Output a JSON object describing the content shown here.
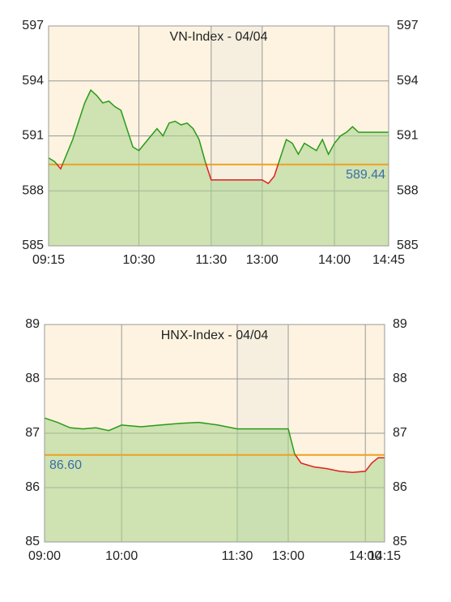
{
  "chart_data": [
    {
      "type": "line",
      "title": "VN-Index - 04/04",
      "x": [
        "09:15",
        "09:20",
        "09:25",
        "09:30",
        "09:35",
        "09:40",
        "09:45",
        "09:50",
        "09:55",
        "10:00",
        "10:05",
        "10:10",
        "10:15",
        "10:20",
        "10:25",
        "10:30",
        "10:35",
        "10:40",
        "10:45",
        "10:50",
        "10:55",
        "11:00",
        "11:05",
        "11:10",
        "11:15",
        "11:20",
        "11:25",
        "11:30",
        "13:00",
        "13:05",
        "13:10",
        "13:15",
        "13:20",
        "13:25",
        "13:30",
        "13:35",
        "13:40",
        "13:45",
        "13:50",
        "13:55",
        "14:00",
        "14:05",
        "14:10",
        "14:15",
        "14:20",
        "14:30",
        "14:45"
      ],
      "series": [
        {
          "name": "VN-Index",
          "color": "#2a9a1a",
          "down_color": "#e0201c",
          "values": [
            589.8,
            589.6,
            589.2,
            590.0,
            590.8,
            591.8,
            592.8,
            593.5,
            593.2,
            592.8,
            592.9,
            592.6,
            592.4,
            591.4,
            590.4,
            590.2,
            590.6,
            591.0,
            591.4,
            591.0,
            591.7,
            591.8,
            591.6,
            591.7,
            591.4,
            590.8,
            589.6,
            588.6,
            588.6,
            588.4,
            588.8,
            589.8,
            590.8,
            590.6,
            590.0,
            590.6,
            590.4,
            590.2,
            590.8,
            590.0,
            590.6,
            591.0,
            591.2,
            591.5,
            591.2,
            591.2,
            591.2
          ]
        }
      ],
      "reference": 589.44,
      "reference_color": "#f0a020",
      "reference_label_side": "right",
      "break": [
        "11:30",
        "13:00"
      ],
      "xticks": [
        "09:15",
        "10:30",
        "11:30",
        "13:00",
        "14:00",
        "14:45"
      ],
      "ylim": [
        585,
        597
      ],
      "yticks": [
        585,
        588,
        591,
        594,
        597
      ],
      "grid": true
    },
    {
      "type": "line",
      "title": "HNX-Index - 04/04",
      "x": [
        "09:00",
        "09:10",
        "09:20",
        "09:30",
        "09:40",
        "09:50",
        "10:00",
        "10:15",
        "10:30",
        "10:45",
        "11:00",
        "11:15",
        "11:30",
        "13:00",
        "13:05",
        "13:10",
        "13:20",
        "13:30",
        "13:40",
        "13:50",
        "14:00",
        "14:05",
        "14:10",
        "14:15"
      ],
      "series": [
        {
          "name": "HNX-Index",
          "color": "#2a9a1a",
          "down_color": "#e0201c",
          "values": [
            87.28,
            87.2,
            87.1,
            87.08,
            87.1,
            87.05,
            87.15,
            87.12,
            87.15,
            87.18,
            87.2,
            87.15,
            87.08,
            87.08,
            86.62,
            86.45,
            86.38,
            86.35,
            86.3,
            86.28,
            86.3,
            86.45,
            86.55,
            86.55
          ]
        }
      ],
      "reference": {
        "value": 86.6,
        "label": "86.60"
      },
      "reference_color": "#f0a020",
      "reference_label_side": "left",
      "break": [
        "11:30",
        "13:00"
      ],
      "xticks": [
        "09:00",
        "10:00",
        "11:30",
        "13:00",
        "14:00",
        "14:15"
      ],
      "ylim": [
        85,
        89
      ],
      "yticks": [
        85,
        86,
        87,
        88,
        89
      ],
      "grid": true
    }
  ]
}
